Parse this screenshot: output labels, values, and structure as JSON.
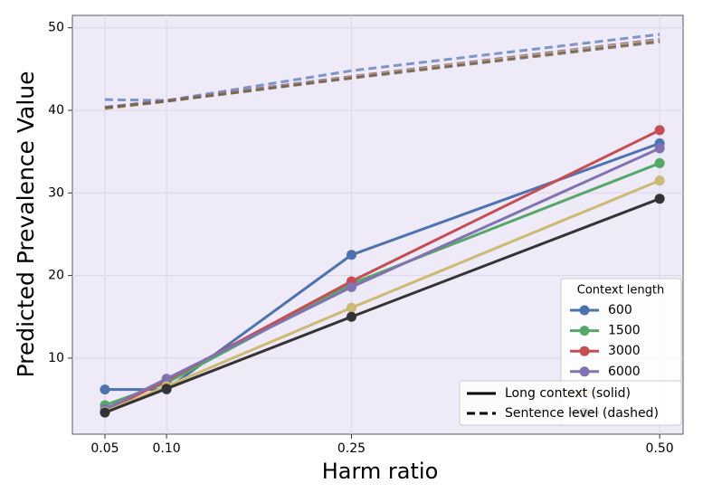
{
  "chart_data": {
    "type": "line",
    "x_label": "Harm ratio",
    "y_label": "Predicted Prevalence Value",
    "x": [
      0.05,
      0.1,
      0.25,
      0.5
    ],
    "xlim": [
      0.0236,
      0.519
    ],
    "xticks": [
      0.05,
      {
        "value": 0.1,
        "label": "0.10"
      },
      0.25,
      {
        "value": 0.5,
        "label": "0.50"
      }
    ],
    "ylim": [
      0.79,
      51.5
    ],
    "yticks": [
      10,
      20,
      30,
      40,
      50
    ],
    "grid": true,
    "legend_title": "Context length",
    "legend_position": "lower right",
    "series": [
      {
        "name": "600",
        "color": "#4c72b0",
        "values": [
          6.2,
          6.2,
          22.5,
          36.0
        ]
      },
      {
        "name": "1500",
        "color": "#55a868",
        "values": [
          4.3,
          7.0,
          19.0,
          33.6
        ]
      },
      {
        "name": "3000",
        "color": "#c44e52",
        "values": [
          3.6,
          7.3,
          19.3,
          37.6
        ]
      },
      {
        "name": "6000",
        "color": "#8172b2",
        "values": [
          3.8,
          7.5,
          18.6,
          35.4
        ]
      },
      {
        "color": "#ccb974",
        "values": [
          3.5,
          6.6,
          16.1,
          31.5
        ]
      },
      {
        "color": "#333333",
        "values": [
          3.4,
          6.3,
          15.0,
          29.3
        ]
      }
    ],
    "dashed_series": [
      {
        "color": "#4c72b0",
        "values": [
          41.3,
          41.2,
          44.8,
          49.2
        ]
      },
      {
        "color": "#55a868",
        "values": [
          40.2,
          41.1,
          44.0,
          48.5
        ]
      },
      {
        "color": "#c44e52",
        "values": [
          40.3,
          41.2,
          44.1,
          48.6
        ]
      },
      {
        "color": "#8172b2",
        "values": [
          40.4,
          41.2,
          44.1,
          48.6
        ]
      },
      {
        "color": "#ccb974",
        "values": [
          40.2,
          41.1,
          44.0,
          48.5
        ]
      },
      {
        "color": "#5a4a3a",
        "values": [
          40.3,
          41.1,
          43.9,
          48.3
        ]
      }
    ],
    "style_legend": [
      "Long context (solid)",
      "Sentence level (dashed)"
    ]
  }
}
